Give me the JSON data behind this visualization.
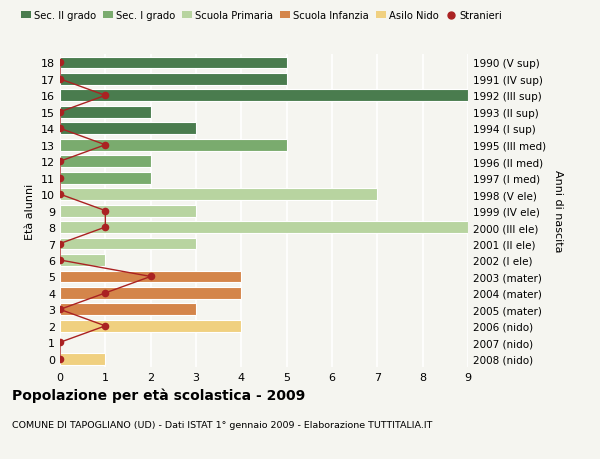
{
  "ages": [
    18,
    17,
    16,
    15,
    14,
    13,
    12,
    11,
    10,
    9,
    8,
    7,
    6,
    5,
    4,
    3,
    2,
    1,
    0
  ],
  "years": [
    "1990 (V sup)",
    "1991 (IV sup)",
    "1992 (III sup)",
    "1993 (II sup)",
    "1994 (I sup)",
    "1995 (III med)",
    "1996 (II med)",
    "1997 (I med)",
    "1998 (V ele)",
    "1999 (IV ele)",
    "2000 (III ele)",
    "2001 (II ele)",
    "2002 (I ele)",
    "2003 (mater)",
    "2004 (mater)",
    "2005 (mater)",
    "2006 (nido)",
    "2007 (nido)",
    "2008 (nido)"
  ],
  "bar_values": [
    5,
    5,
    9,
    2,
    3,
    5,
    2,
    2,
    7,
    3,
    9,
    3,
    1,
    4,
    4,
    3,
    4,
    0,
    1
  ],
  "bar_colors": [
    "#4a7c4e",
    "#4a7c4e",
    "#4a7c4e",
    "#4a7c4e",
    "#4a7c4e",
    "#7aab6e",
    "#7aab6e",
    "#7aab6e",
    "#b8d4a0",
    "#b8d4a0",
    "#b8d4a0",
    "#b8d4a0",
    "#b8d4a0",
    "#d4854a",
    "#d4854a",
    "#d4854a",
    "#f0d080",
    "#f0d080",
    "#f0d080"
  ],
  "stranieri": [
    0,
    0,
    1,
    0,
    0,
    1,
    0,
    0,
    0,
    1,
    1,
    0,
    0,
    2,
    1,
    0,
    1,
    0,
    0
  ],
  "color_sec2": "#4a7c4e",
  "color_sec1": "#7aab6e",
  "color_primaria": "#b8d4a0",
  "color_infanzia": "#d4854a",
  "color_nido": "#f0d080",
  "color_stranieri": "#aa2222",
  "ylabel": "Età alunni",
  "ylabel_right": "Anni di nascita",
  "title": "Popolazione per età scolastica - 2009",
  "subtitle": "COMUNE DI TAPOGLIANO (UD) - Dati ISTAT 1° gennaio 2009 - Elaborazione TUTTITALIA.IT",
  "xlim": [
    0,
    9
  ],
  "background_color": "#f5f5f0",
  "grid_color": "#ddddcc",
  "legend_labels": [
    "Sec. II grado",
    "Sec. I grado",
    "Scuola Primaria",
    "Scuola Infanzia",
    "Asilo Nido",
    "Stranieri"
  ]
}
